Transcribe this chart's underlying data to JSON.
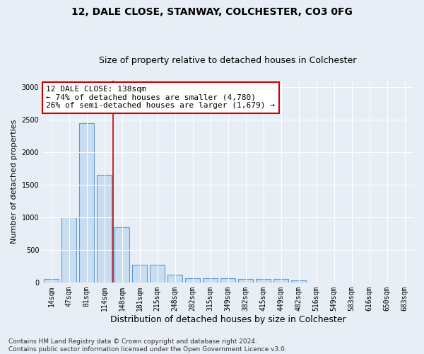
{
  "title1": "12, DALE CLOSE, STANWAY, COLCHESTER, CO3 0FG",
  "title2": "Size of property relative to detached houses in Colchester",
  "xlabel": "Distribution of detached houses by size in Colchester",
  "ylabel": "Number of detached properties",
  "footnote": "Contains HM Land Registry data © Crown copyright and database right 2024.\nContains public sector information licensed under the Open Government Licence v3.0.",
  "bar_labels": [
    "14sqm",
    "47sqm",
    "81sqm",
    "114sqm",
    "148sqm",
    "181sqm",
    "215sqm",
    "248sqm",
    "282sqm",
    "315sqm",
    "349sqm",
    "382sqm",
    "415sqm",
    "449sqm",
    "482sqm",
    "516sqm",
    "549sqm",
    "583sqm",
    "616sqm",
    "650sqm",
    "683sqm"
  ],
  "bar_values": [
    50,
    1000,
    2450,
    1650,
    850,
    270,
    270,
    120,
    60,
    60,
    60,
    50,
    50,
    50,
    30,
    0,
    0,
    0,
    0,
    0,
    0
  ],
  "bar_color": "#c9ddf0",
  "bar_edge_color": "#5b9bd5",
  "annotation_text": "12 DALE CLOSE: 138sqm\n← 74% of detached houses are smaller (4,780)\n26% of semi-detached houses are larger (1,679) →",
  "annotation_box_color": "white",
  "annotation_border_color": "#cc0000",
  "vline_color": "#cc0000",
  "vline_x_index": 3.5,
  "ylim": [
    0,
    3100
  ],
  "yticks": [
    0,
    500,
    1000,
    1500,
    2000,
    2500,
    3000
  ],
  "bg_color": "#e8eef5",
  "plot_bg_color": "#e8eef5",
  "title1_fontsize": 10,
  "title2_fontsize": 9,
  "xlabel_fontsize": 9,
  "ylabel_fontsize": 8,
  "tick_fontsize": 7,
  "annotation_fontsize": 8,
  "footnote_fontsize": 6.5
}
